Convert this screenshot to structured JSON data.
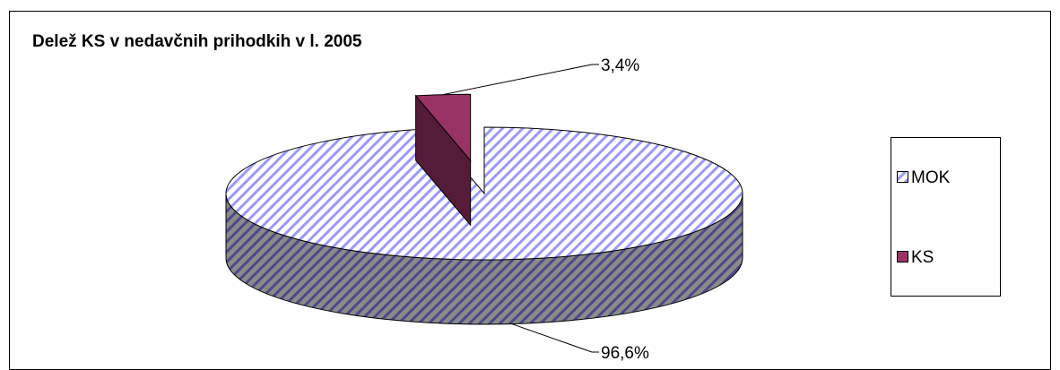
{
  "chart_data": {
    "type": "pie3d",
    "title": "Delež KS v nedavčnih prihodkih v l. 2005",
    "categories": [
      "MOK",
      "KS"
    ],
    "values": [
      96.6,
      3.4
    ],
    "value_labels": [
      "96,6%",
      "3,4%"
    ],
    "colors": [
      "#9999ff",
      "#993366"
    ],
    "hatch": [
      true,
      false
    ],
    "exploded": [
      false,
      true
    ],
    "legend": "right"
  }
}
